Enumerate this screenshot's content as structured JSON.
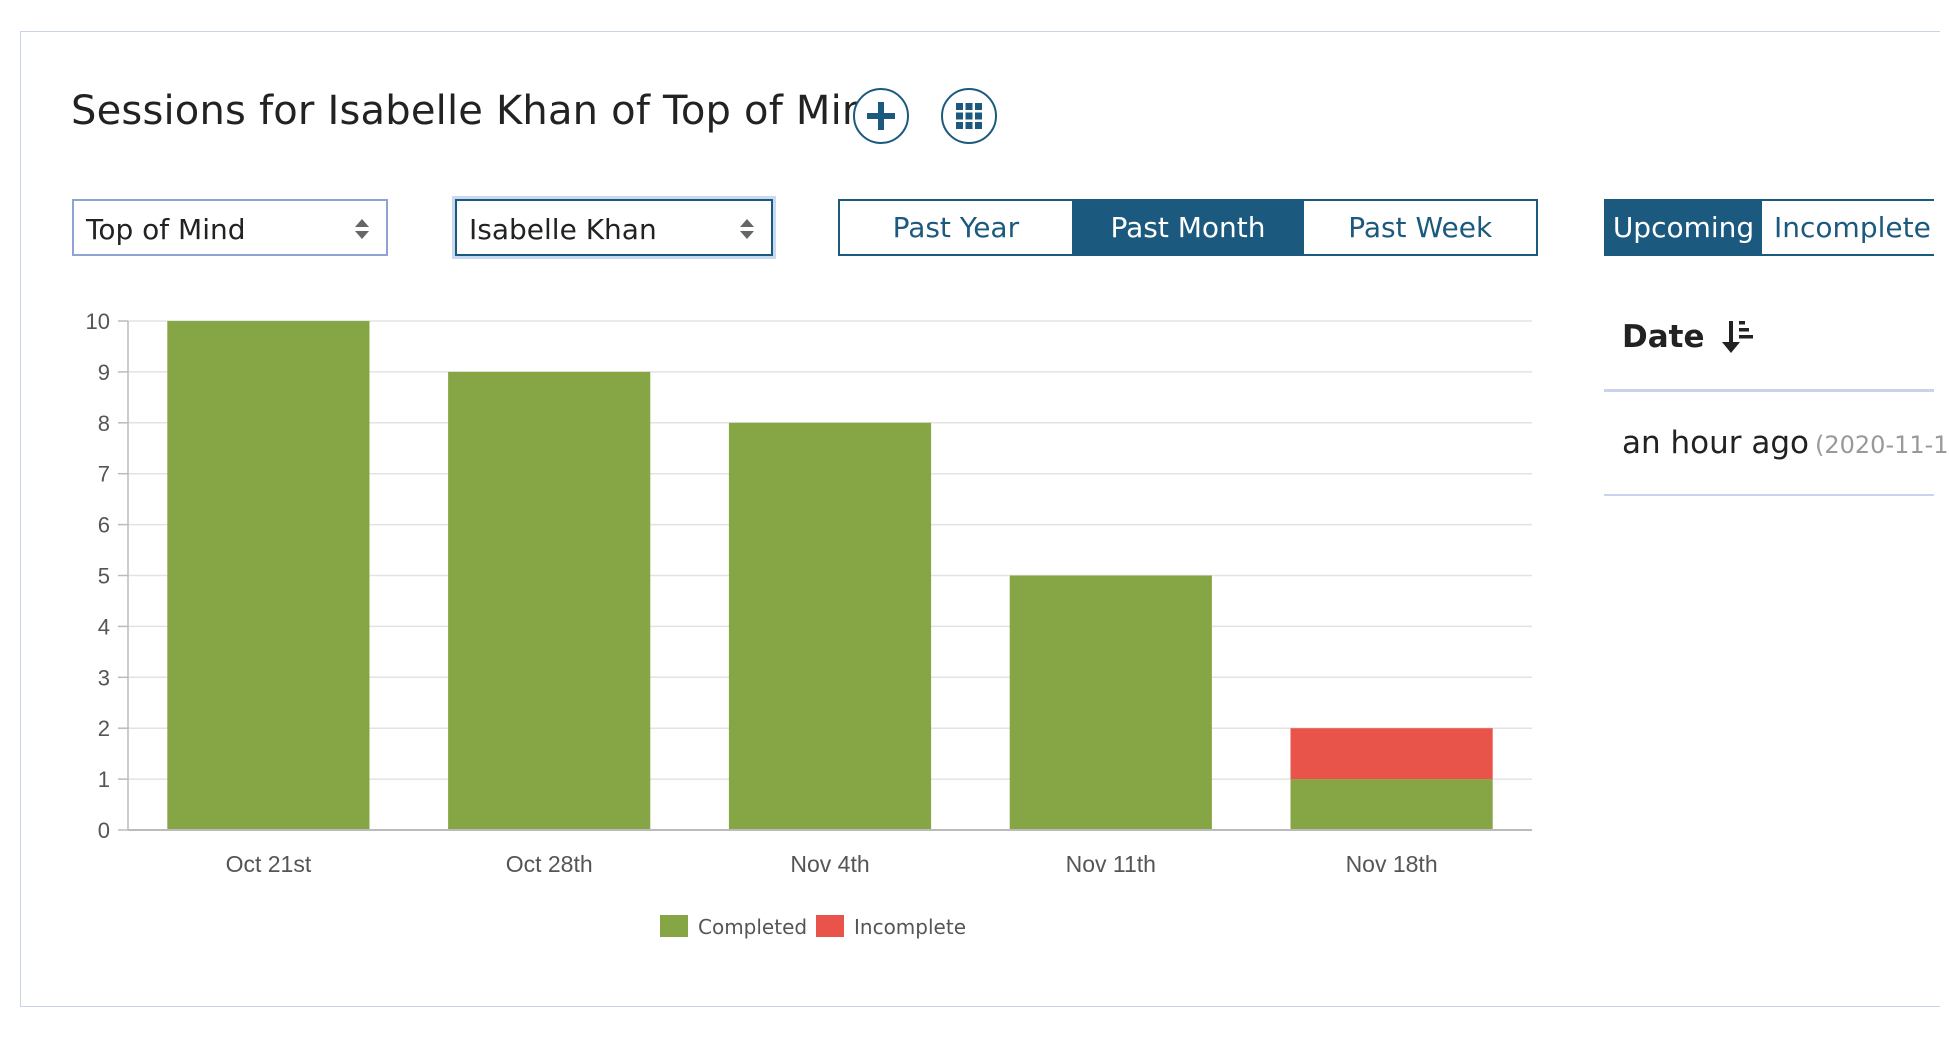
{
  "header": {
    "title": "Sessions for Isabelle Khan of Top of Mind"
  },
  "filters": {
    "organization": "Top of Mind",
    "person": "Isabelle Khan"
  },
  "range_tabs": [
    {
      "label": "Past Year",
      "active": false
    },
    {
      "label": "Past Month",
      "active": true
    },
    {
      "label": "Past Week",
      "active": false
    }
  ],
  "status_tabs": [
    {
      "label": "Upcoming",
      "active": true
    },
    {
      "label": "Incomplete",
      "active": false
    }
  ],
  "table": {
    "date_header": "Date",
    "rows": [
      {
        "relative": "an hour ago",
        "timestamp": "(2020-11-1"
      }
    ]
  },
  "colors": {
    "primary": "#1b5a7e",
    "completed": "#86a545",
    "incomplete": "#e8544a"
  },
  "icons": {
    "add": "plus-icon",
    "grid": "grid-icon",
    "sort": "sort-descending-icon",
    "select_arrows": "chevron-up-down-icon"
  },
  "chart_data": {
    "type": "bar",
    "stacked": true,
    "categories": [
      "Oct 21st",
      "Oct 28th",
      "Nov 4th",
      "Nov 11th",
      "Nov 18th"
    ],
    "series": [
      {
        "name": "Completed",
        "values": [
          10,
          9,
          8,
          5,
          1
        ],
        "color": "#86a545"
      },
      {
        "name": "Incomplete",
        "values": [
          0,
          0,
          0,
          0,
          1
        ],
        "color": "#e8544a"
      }
    ],
    "ylim": [
      0,
      10
    ],
    "yticks": [
      0,
      1,
      2,
      3,
      4,
      5,
      6,
      7,
      8,
      9,
      10
    ],
    "grid": true,
    "legend": "bottom-center"
  }
}
